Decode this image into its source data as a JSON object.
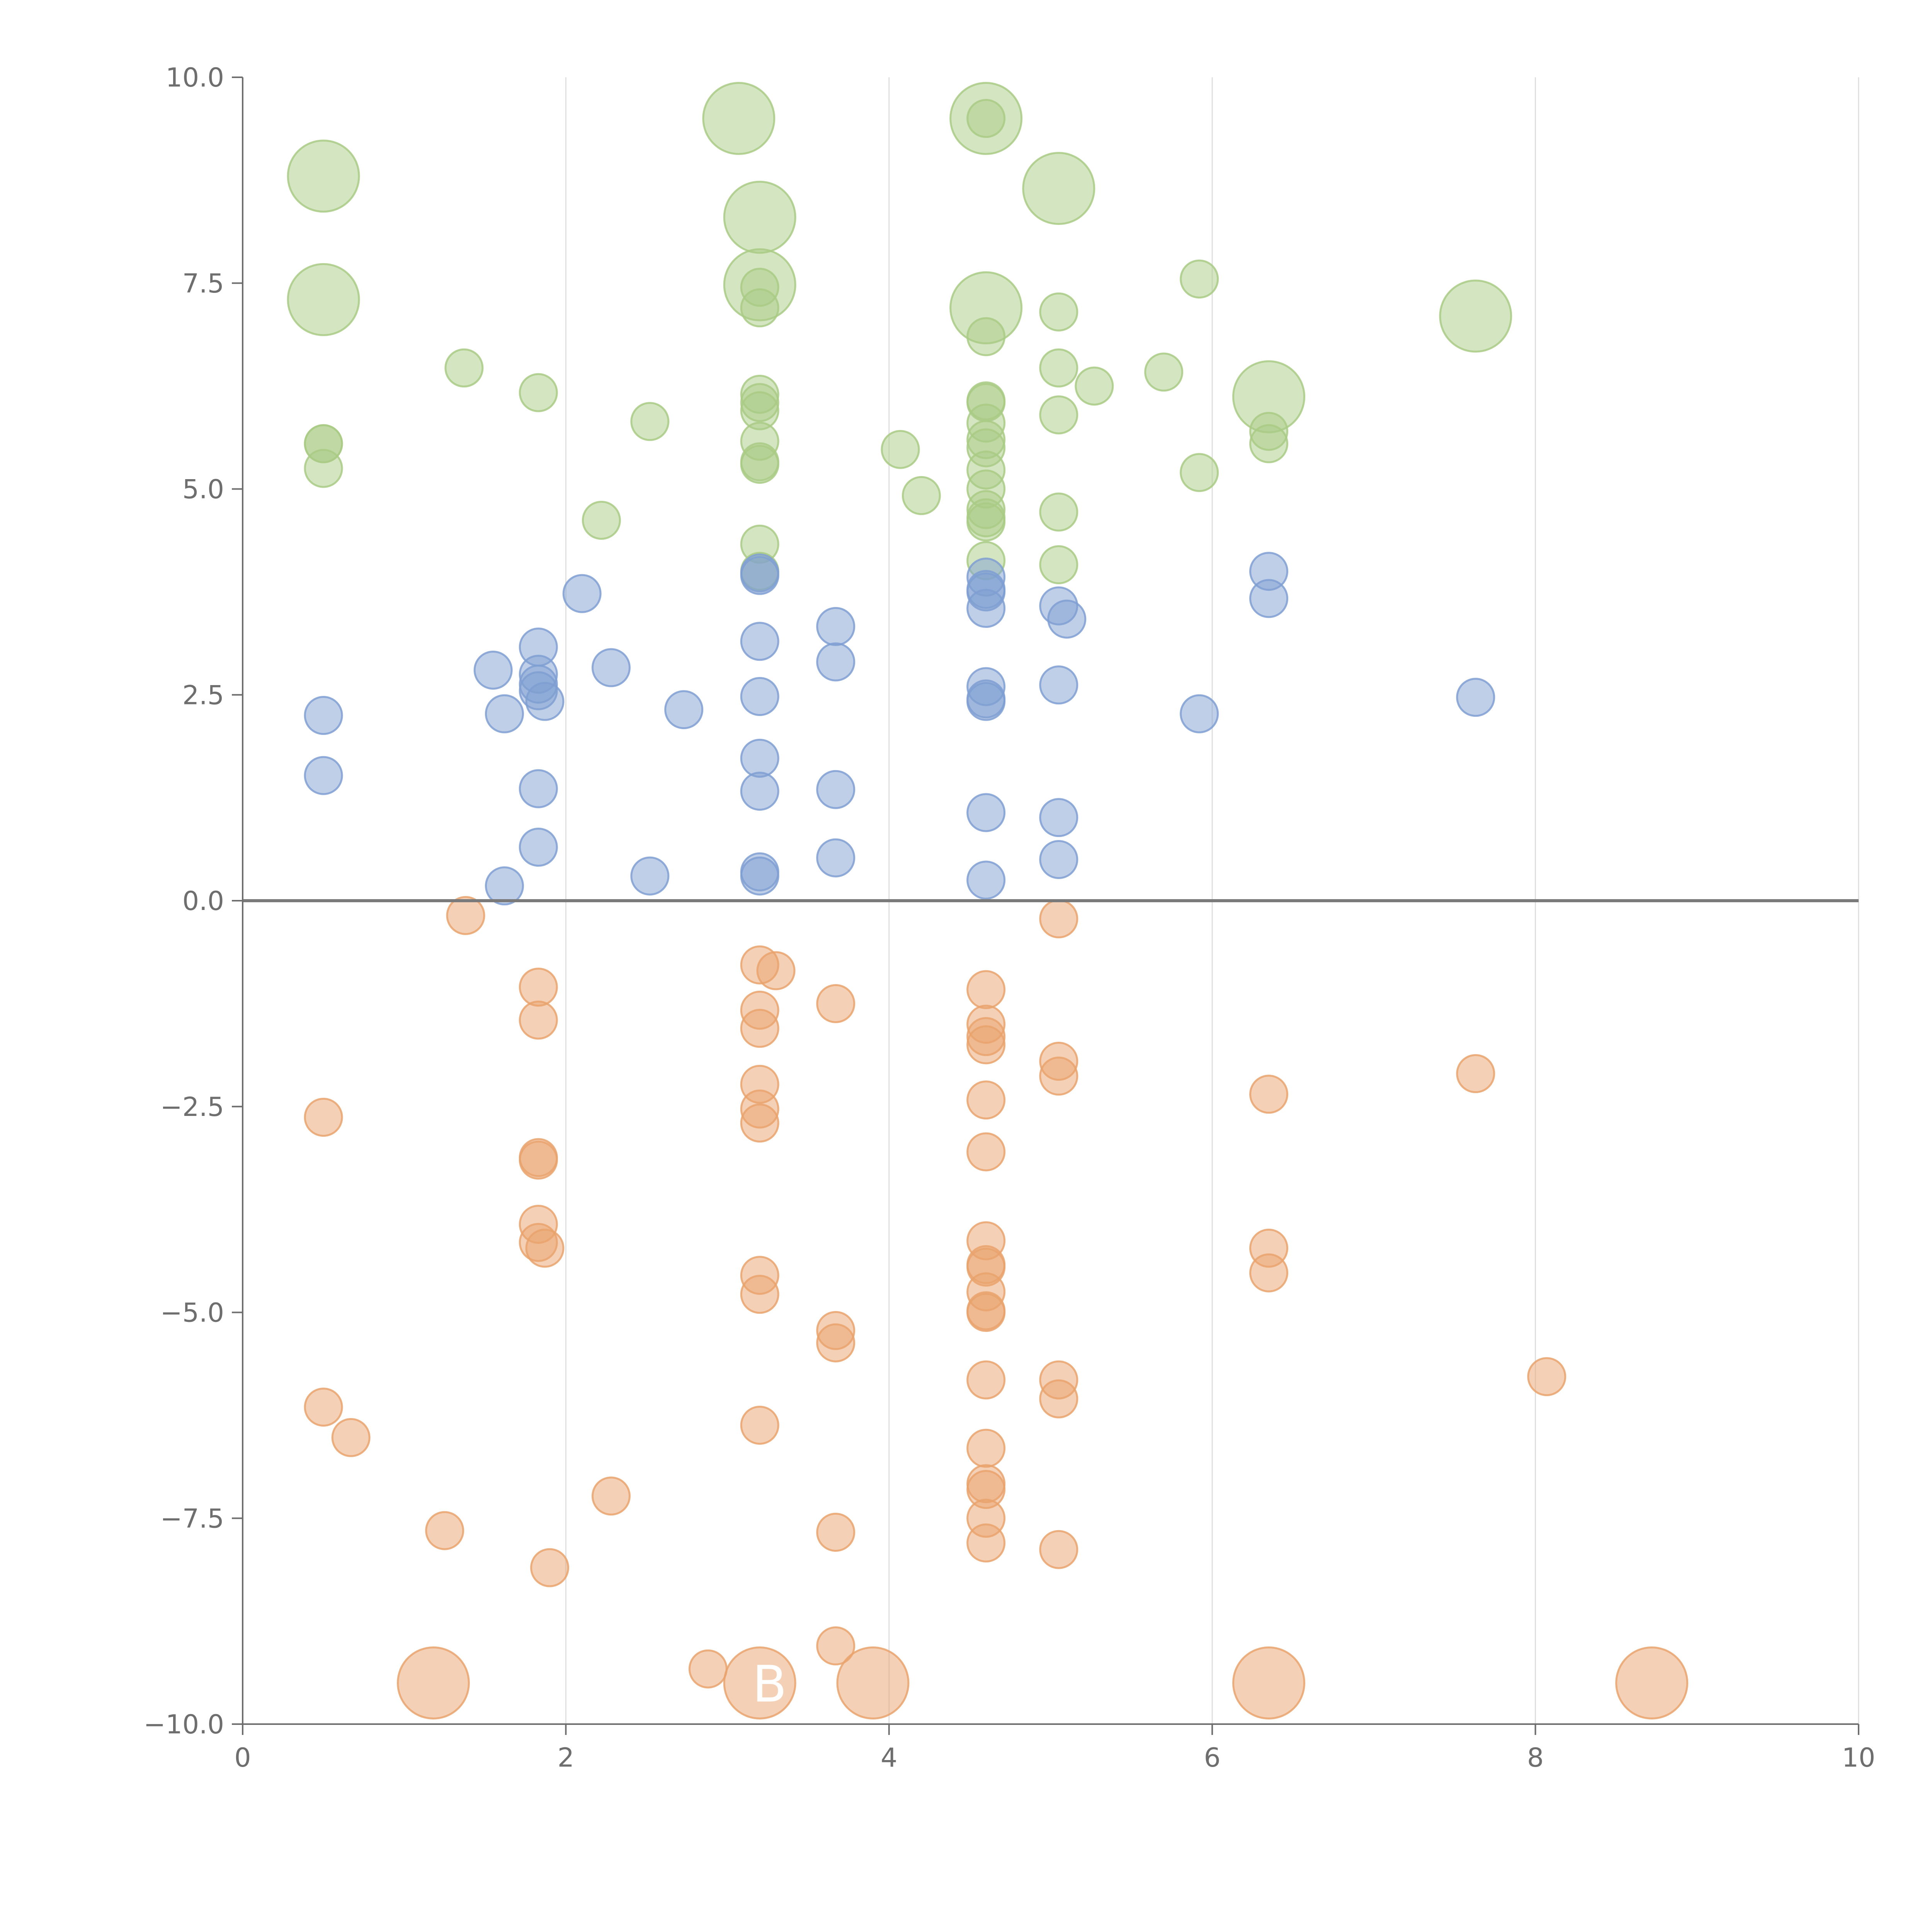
{
  "chart_data": {
    "type": "scatter",
    "title": "",
    "xlabel": "",
    "ylabel": "",
    "xlim": [
      0,
      10
    ],
    "ylim": [
      -10,
      10
    ],
    "x_ticks": [
      0,
      2,
      4,
      6,
      8,
      10
    ],
    "x_tick_labels": [
      "0",
      "2",
      "4",
      "6",
      "8",
      "10"
    ],
    "y_ticks": [
      -10,
      -7.5,
      -5,
      -2.5,
      0,
      2.5,
      5,
      7.5,
      10
    ],
    "y_tick_labels": [
      "−10.0",
      "−7.5",
      "−5.0",
      "−2.5",
      "0.0",
      "2.5",
      "5.0",
      "7.5",
      "10.0"
    ],
    "grid": "vertical",
    "zero_line": true,
    "colors": {
      "green": "#a9cb85",
      "blue": "#7f9fd2",
      "orange": "#e9a36d",
      "axis": "#6e6e6e",
      "grid": "#dedede",
      "zero": "#7a7a7a"
    },
    "annotations": [
      {
        "text": "B",
        "x": 3.25,
        "y": -9.5
      }
    ],
    "series": [
      {
        "name": "green",
        "color": "#a9cb85",
        "points": [
          [
            0.5,
            8.8,
            3
          ],
          [
            0.5,
            7.3,
            3
          ],
          [
            0.5,
            5.55,
            1
          ],
          [
            0.5,
            5.55,
            1
          ],
          [
            0.5,
            5.25,
            1
          ],
          [
            1.37,
            6.47,
            1
          ],
          [
            1.83,
            6.17,
            1
          ],
          [
            2.22,
            4.62,
            1
          ],
          [
            2.52,
            5.82,
            1
          ],
          [
            3.07,
            9.5,
            3
          ],
          [
            3.2,
            8.3,
            3
          ],
          [
            3.2,
            7.48,
            3
          ],
          [
            3.2,
            7.45,
            1
          ],
          [
            3.2,
            7.2,
            1
          ],
          [
            3.2,
            6.15,
            1
          ],
          [
            3.2,
            6.05,
            1
          ],
          [
            3.2,
            5.95,
            1
          ],
          [
            3.2,
            5.58,
            1
          ],
          [
            3.2,
            5.33,
            1
          ],
          [
            3.2,
            5.3,
            1
          ],
          [
            3.2,
            4.33,
            1
          ],
          [
            3.2,
            4.0,
            1
          ],
          [
            4.07,
            5.48,
            1
          ],
          [
            4.2,
            4.92,
            1
          ],
          [
            4.6,
            9.5,
            3
          ],
          [
            4.6,
            9.5,
            1
          ],
          [
            4.6,
            7.2,
            3
          ],
          [
            4.6,
            6.85,
            1
          ],
          [
            4.6,
            6.07,
            1
          ],
          [
            4.6,
            6.05,
            1
          ],
          [
            4.6,
            5.8,
            1
          ],
          [
            4.6,
            5.6,
            1
          ],
          [
            4.6,
            5.5,
            1
          ],
          [
            4.6,
            5.23,
            1
          ],
          [
            4.6,
            5.0,
            1
          ],
          [
            4.6,
            4.75,
            1
          ],
          [
            4.6,
            4.65,
            1
          ],
          [
            4.6,
            4.6,
            1
          ],
          [
            4.6,
            4.13,
            1
          ],
          [
            5.05,
            8.65,
            3
          ],
          [
            5.05,
            7.15,
            1
          ],
          [
            5.05,
            6.47,
            1
          ],
          [
            5.05,
            5.9,
            1
          ],
          [
            5.05,
            4.72,
            1
          ],
          [
            5.05,
            4.08,
            1
          ],
          [
            5.27,
            6.25,
            1
          ],
          [
            5.7,
            6.42,
            1
          ],
          [
            5.92,
            7.55,
            1
          ],
          [
            5.92,
            5.2,
            1
          ],
          [
            6.35,
            6.12,
            3
          ],
          [
            6.35,
            5.7,
            1
          ],
          [
            6.35,
            5.55,
            1
          ],
          [
            7.63,
            7.1,
            3
          ]
        ]
      },
      {
        "name": "blue",
        "color": "#7f9fd2",
        "points": [
          [
            0.5,
            2.25,
            1
          ],
          [
            0.5,
            1.52,
            1
          ],
          [
            1.55,
            2.8,
            1
          ],
          [
            1.62,
            2.27,
            1
          ],
          [
            1.62,
            0.18,
            1
          ],
          [
            1.83,
            3.08,
            1
          ],
          [
            1.83,
            2.75,
            1
          ],
          [
            1.83,
            2.63,
            1
          ],
          [
            1.83,
            2.55,
            1
          ],
          [
            1.87,
            2.42,
            1
          ],
          [
            1.83,
            1.36,
            1
          ],
          [
            1.83,
            0.65,
            1
          ],
          [
            2.1,
            3.73,
            1
          ],
          [
            2.28,
            2.83,
            1
          ],
          [
            2.52,
            0.3,
            1
          ],
          [
            2.73,
            2.32,
            1
          ],
          [
            3.2,
            3.98,
            1
          ],
          [
            3.2,
            3.95,
            1
          ],
          [
            3.2,
            3.15,
            1
          ],
          [
            3.2,
            2.48,
            1
          ],
          [
            3.2,
            1.73,
            1
          ],
          [
            3.2,
            1.33,
            1
          ],
          [
            3.2,
            0.35,
            1
          ],
          [
            3.2,
            0.3,
            1
          ],
          [
            3.67,
            3.33,
            1
          ],
          [
            3.67,
            2.9,
            1
          ],
          [
            3.67,
            1.35,
            1
          ],
          [
            3.67,
            0.52,
            1
          ],
          [
            4.6,
            3.93,
            1
          ],
          [
            4.6,
            3.78,
            1
          ],
          [
            4.6,
            3.75,
            1
          ],
          [
            4.6,
            3.55,
            1
          ],
          [
            4.6,
            2.6,
            1
          ],
          [
            4.6,
            2.45,
            1
          ],
          [
            4.6,
            2.42,
            1
          ],
          [
            4.6,
            1.07,
            1
          ],
          [
            4.6,
            0.25,
            1
          ],
          [
            5.05,
            3.58,
            1
          ],
          [
            5.1,
            3.42,
            1
          ],
          [
            5.05,
            2.62,
            1
          ],
          [
            5.05,
            1.01,
            1
          ],
          [
            5.05,
            0.5,
            1
          ],
          [
            5.92,
            2.27,
            1
          ],
          [
            6.35,
            4.0,
            1
          ],
          [
            6.35,
            3.67,
            1
          ],
          [
            7.63,
            2.47,
            1
          ]
        ]
      },
      {
        "name": "orange",
        "color": "#e9a36d",
        "points": [
          [
            0.5,
            -2.63,
            1
          ],
          [
            0.5,
            -6.15,
            1
          ],
          [
            0.67,
            -6.52,
            1
          ],
          [
            1.25,
            -7.65,
            1
          ],
          [
            1.18,
            -9.5,
            3
          ],
          [
            1.38,
            -0.18,
            1
          ],
          [
            1.83,
            -1.05,
            1
          ],
          [
            1.83,
            -1.45,
            1
          ],
          [
            1.83,
            -3.12,
            1
          ],
          [
            1.83,
            -3.15,
            1
          ],
          [
            1.83,
            -3.93,
            1
          ],
          [
            1.83,
            -4.15,
            1
          ],
          [
            1.87,
            -4.22,
            1
          ],
          [
            1.9,
            -8.1,
            1
          ],
          [
            2.28,
            -7.23,
            1
          ],
          [
            2.88,
            -9.33,
            1
          ],
          [
            3.2,
            -0.78,
            1
          ],
          [
            3.3,
            -0.85,
            1
          ],
          [
            3.2,
            -1.33,
            1
          ],
          [
            3.2,
            -1.55,
            1
          ],
          [
            3.2,
            -2.23,
            1
          ],
          [
            3.2,
            -2.53,
            1
          ],
          [
            3.2,
            -2.7,
            1
          ],
          [
            3.2,
            -4.55,
            1
          ],
          [
            3.2,
            -4.78,
            1
          ],
          [
            3.2,
            -6.37,
            1
          ],
          [
            3.2,
            -9.5,
            3
          ],
          [
            3.67,
            -1.25,
            1
          ],
          [
            3.67,
            -5.22,
            1
          ],
          [
            3.67,
            -5.37,
            1
          ],
          [
            3.67,
            -7.67,
            1
          ],
          [
            3.67,
            -9.05,
            1
          ],
          [
            3.9,
            -9.5,
            3
          ],
          [
            4.6,
            -1.08,
            1
          ],
          [
            4.6,
            -1.5,
            1
          ],
          [
            4.6,
            -1.65,
            1
          ],
          [
            4.6,
            -1.75,
            1
          ],
          [
            4.6,
            -2.42,
            1
          ],
          [
            4.6,
            -3.05,
            1
          ],
          [
            4.6,
            -4.13,
            1
          ],
          [
            4.6,
            -4.42,
            1
          ],
          [
            4.6,
            -4.45,
            1
          ],
          [
            4.6,
            -4.75,
            1
          ],
          [
            4.6,
            -4.98,
            1
          ],
          [
            4.6,
            -5.0,
            1
          ],
          [
            4.6,
            -5.82,
            1
          ],
          [
            4.6,
            -6.65,
            1
          ],
          [
            4.6,
            -7.08,
            1
          ],
          [
            4.6,
            -7.15,
            1
          ],
          [
            4.6,
            -7.5,
            1
          ],
          [
            4.6,
            -7.8,
            1
          ],
          [
            5.05,
            -0.22,
            1
          ],
          [
            5.05,
            -1.95,
            1
          ],
          [
            5.05,
            -2.13,
            1
          ],
          [
            5.05,
            -5.82,
            1
          ],
          [
            5.05,
            -6.05,
            1
          ],
          [
            5.05,
            -7.88,
            1
          ],
          [
            6.35,
            -2.35,
            1
          ],
          [
            6.35,
            -4.22,
            1
          ],
          [
            6.35,
            -4.52,
            1
          ],
          [
            6.35,
            -9.5,
            3
          ],
          [
            7.63,
            -2.1,
            1
          ],
          [
            8.07,
            -5.78,
            1
          ],
          [
            8.72,
            -9.5,
            3
          ]
        ]
      }
    ]
  }
}
